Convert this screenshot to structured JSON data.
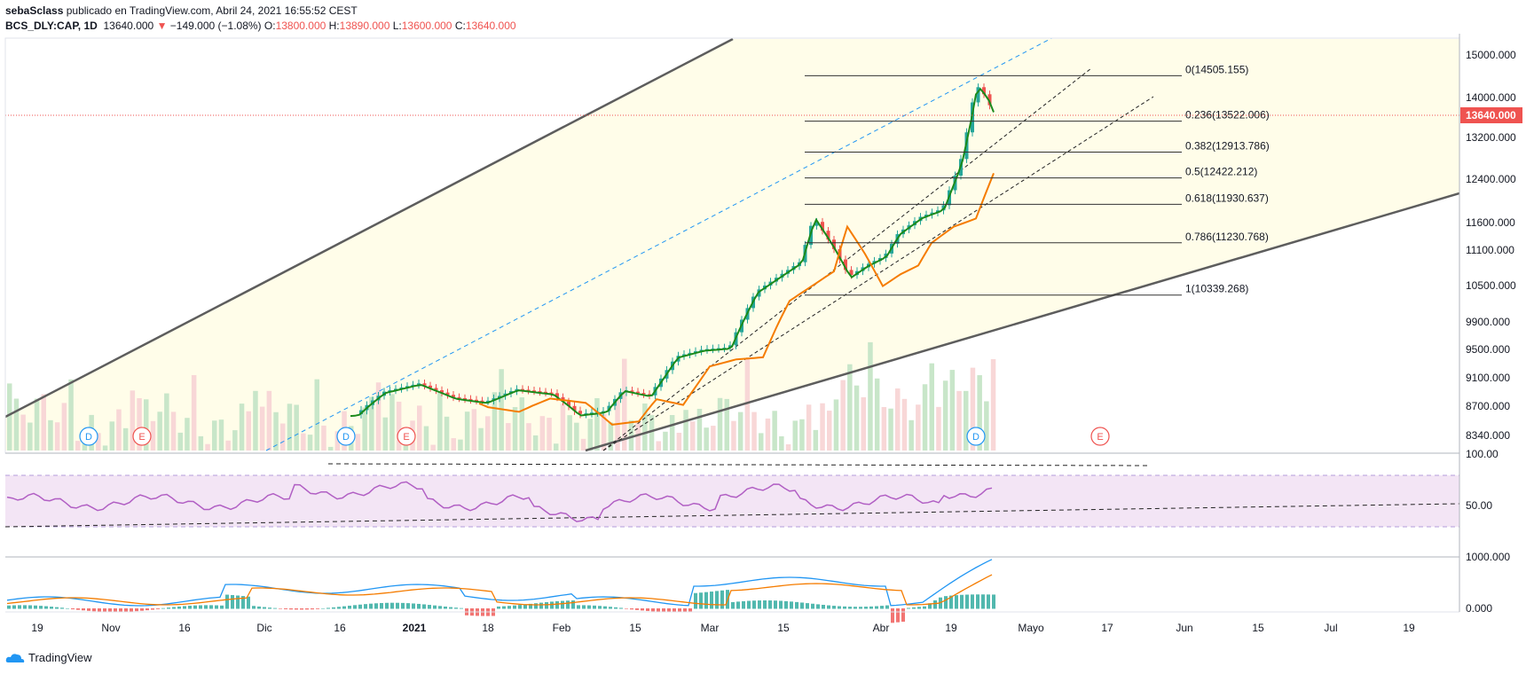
{
  "header": {
    "author": "sebaSclass",
    "published": "publicado en TradingView.com, Abril 24, 2021 16:55:52 CEST",
    "symbol": "BCS_DLY:CAP, 1D",
    "last": "13640.000",
    "change": "−149.000 (−1.08%)",
    "o_label": "O:",
    "o": "13800.000",
    "h_label": "H:",
    "h": "13890.000",
    "l_label": "L:",
    "l": "13600.000",
    "c_label": "C:",
    "c": "13640.000"
  },
  "brand": "TradingView",
  "colors": {
    "up": "#26a69a",
    "down": "#ef5350",
    "ema_fast": "#1b8a1b",
    "ema_slow": "#f57c00",
    "rsi": "#b15fc4",
    "macd": "#2196f3",
    "signal": "#f57c00"
  },
  "chart_data": [
    {
      "type": "candlestick",
      "panel": "price",
      "x_ticks": [
        "19",
        "Nov",
        "16",
        "Dic",
        "16",
        "2021",
        "18",
        "Feb",
        "15",
        "Mar",
        "15",
        "Abr",
        "19",
        "Mayo",
        "17",
        "Jun",
        "15",
        "Jul",
        "19"
      ],
      "y_ticks": [
        "15000.000",
        "14000.000",
        "13200.000",
        "12400.000",
        "11600.000",
        "11100.000",
        "10500.000",
        "9900.000",
        "9500.000",
        "9100.000",
        "8700.000",
        "8340.000"
      ],
      "y_scale": "log",
      "last_price_label": "13640.000",
      "fib_levels": [
        {
          "label": "0(14505.155)",
          "value": 14505.155
        },
        {
          "label": "0.236(13522.006)",
          "value": 13522.006
        },
        {
          "label": "0.382(12913.786)",
          "value": 12913.786
        },
        {
          "label": "0.5(12422.212)",
          "value": 12422.212
        },
        {
          "label": "0.618(11930.637)",
          "value": 11930.637
        },
        {
          "label": "0.786(11230.768)",
          "value": 11230.768
        },
        {
          "label": "1(10339.268)",
          "value": 10339.268
        }
      ],
      "event_markers": [
        "D",
        "E",
        "D",
        "E",
        "D",
        "E"
      ]
    },
    {
      "type": "line",
      "panel": "rsi",
      "y_ticks": [
        "100.00",
        "50.00"
      ]
    },
    {
      "type": "bar+line",
      "panel": "macd",
      "y_ticks": [
        "1000.000",
        "0.000"
      ]
    }
  ]
}
